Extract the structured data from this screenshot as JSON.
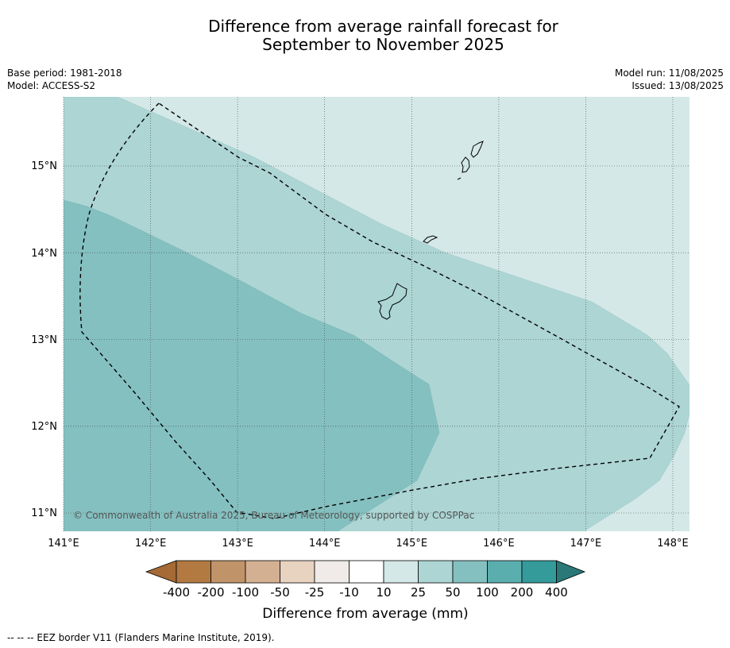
{
  "title": {
    "line1": "Difference from average rainfall forecast for",
    "line2": "September to November 2025"
  },
  "meta": {
    "base_period": "Base period: 1981-2018",
    "model": "Model: ACCESS-S2",
    "model_run": "Model run: 11/08/2025",
    "issued": "Issued: 13/08/2025"
  },
  "map": {
    "lon_labels": [
      "141°E",
      "142°E",
      "143°E",
      "144°E",
      "145°E",
      "146°E",
      "147°E",
      "148°E"
    ],
    "lat_labels": [
      "15°N",
      "14°N",
      "13°N",
      "12°N",
      "11°N"
    ],
    "copyright": "© Commonwealth of Australia 2025, Bureau of Meteorology, supported by COSPPac",
    "fill_colors": {
      "band_10_25": "#d4e8e7",
      "band_25_50": "#acd5d4",
      "band_50_100": "#85c0c0"
    }
  },
  "colorbar": {
    "ticks": [
      "-400",
      "-200",
      "-100",
      "-50",
      "-25",
      "-10",
      "10",
      "25",
      "50",
      "100",
      "200",
      "400"
    ],
    "colors": [
      "#a56a35",
      "#b27a41",
      "#c09369",
      "#d4b092",
      "#e8d2c0",
      "#f0ebe8",
      "#ffffff",
      "#d4e8e7",
      "#acd5d4",
      "#85c0c0",
      "#5aaeae",
      "#359a9a",
      "#2a7878"
    ],
    "label": "Difference from average (mm)"
  },
  "footer": {
    "legend_text": "--  --  -- EEZ border V11 (Flanders Marine Institute, 2019)."
  }
}
